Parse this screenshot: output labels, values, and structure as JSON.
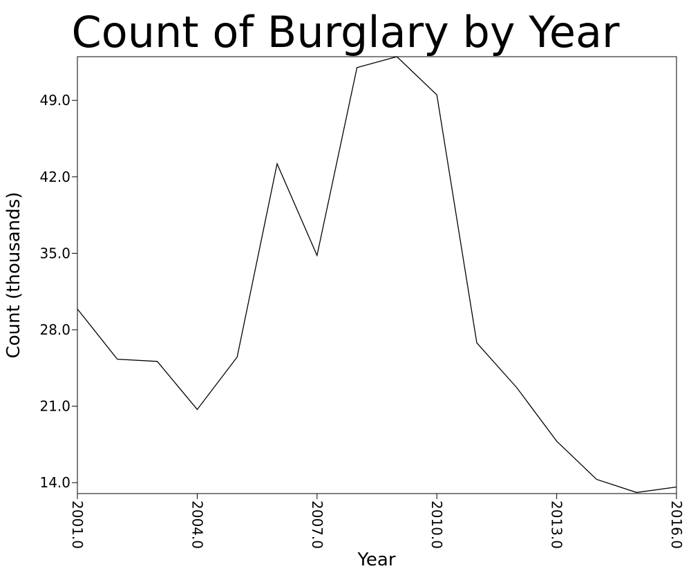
{
  "chart_data": {
    "type": "line",
    "title": "Count of Burglary by Year",
    "xlabel": "Year",
    "ylabel": "Count (thousands)",
    "x": [
      2001,
      2002,
      2003,
      2004,
      2005,
      2006,
      2007,
      2008,
      2009,
      2010,
      2011,
      2012,
      2013,
      2014,
      2015,
      2016
    ],
    "y": [
      29.9,
      25.3,
      25.1,
      20.7,
      25.5,
      43.2,
      34.8,
      52.0,
      53.0,
      49.5,
      26.8,
      22.7,
      17.8,
      14.3,
      13.1,
      13.6
    ],
    "xlim": [
      2001,
      2016
    ],
    "ylim": [
      13.0,
      53.0
    ],
    "x_ticks": [
      "2001.0",
      "2004.0",
      "2007.0",
      "2010.0",
      "2013.0",
      "2016.0"
    ],
    "y_ticks": [
      "14.0",
      "21.0",
      "28.0",
      "35.0",
      "42.0",
      "49.0"
    ],
    "grid": false,
    "line_color": "#000000"
  }
}
